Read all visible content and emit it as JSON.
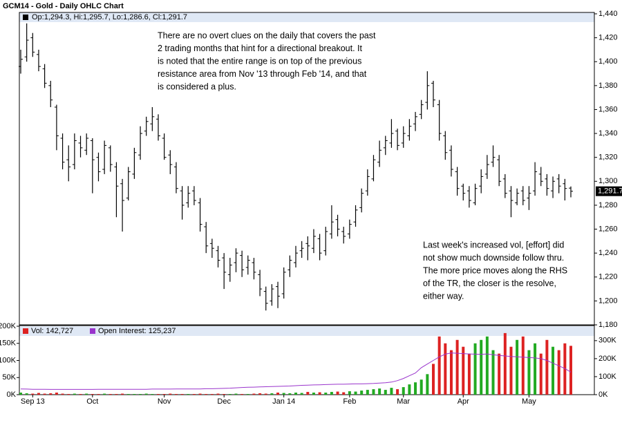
{
  "chart_data": [
    {
      "type": "ohlc",
      "title": "GCM14 - Gold - Daily OHLC Chart",
      "legend_text": "Op:1,294.3, Hi:1,295.7, Lo:1,286.6, Cl:1,291.7",
      "color": "#000000",
      "annotations": [
        {
          "lines": [
            "There are no overt clues on the daily that covers the past",
            "2 trading months that hint for a directional breakout.  It",
            "is noted that the entire range is on top of the previous",
            "resistance area from Nov '13 through Feb '14, and that",
            "is considered a plus."
          ]
        },
        {
          "lines": [
            "Last week's increased vol, [effort] did",
            "not show much downside follow thru.",
            "The more price moves along the RHS",
            "of the TR, the closer is the resolve,",
            "either way."
          ]
        }
      ],
      "last_label": "1,291.7",
      "open": [
        1396,
        1404,
        1420,
        1406,
        1394,
        1380,
        1362,
        1336,
        1318,
        1314,
        1332,
        1326,
        1334,
        1320,
        1310,
        1328,
        1312,
        1298,
        1286,
        1306,
        1322,
        1342,
        1348,
        1352,
        1336,
        1322,
        1312,
        1292,
        1282,
        1292,
        1282,
        1262,
        1248,
        1242,
        1236,
        1222,
        1232,
        1238,
        1228,
        1232,
        1222,
        1208,
        1200,
        1212,
        1206,
        1226,
        1232,
        1242,
        1248,
        1244,
        1252,
        1242,
        1256,
        1268,
        1258,
        1256,
        1266,
        1278,
        1292,
        1302,
        1316,
        1328,
        1332,
        1342,
        1332,
        1338,
        1348,
        1356,
        1366,
        1382,
        1364,
        1338,
        1326,
        1308,
        1296,
        1292,
        1282,
        1296,
        1306,
        1316,
        1318,
        1302,
        1292,
        1282,
        1292,
        1286,
        1292,
        1306,
        1302,
        1292,
        1302,
        1298,
        1294.3
      ],
      "high": [
        1410,
        1432,
        1424,
        1410,
        1398,
        1384,
        1364,
        1340,
        1330,
        1340,
        1338,
        1340,
        1336,
        1324,
        1334,
        1330,
        1316,
        1302,
        1312,
        1328,
        1346,
        1354,
        1362,
        1356,
        1340,
        1326,
        1316,
        1296,
        1296,
        1296,
        1286,
        1266,
        1252,
        1246,
        1240,
        1236,
        1244,
        1242,
        1238,
        1236,
        1226,
        1212,
        1214,
        1216,
        1228,
        1238,
        1246,
        1250,
        1254,
        1260,
        1256,
        1262,
        1280,
        1272,
        1262,
        1268,
        1280,
        1294,
        1310,
        1322,
        1334,
        1338,
        1352,
        1344,
        1346,
        1352,
        1358,
        1368,
        1392,
        1384,
        1368,
        1342,
        1330,
        1312,
        1298,
        1296,
        1298,
        1310,
        1322,
        1330,
        1322,
        1306,
        1296,
        1294,
        1296,
        1296,
        1316,
        1312,
        1306,
        1304,
        1306,
        1302,
        1295.7
      ],
      "low": [
        1390,
        1400,
        1404,
        1392,
        1378,
        1362,
        1326,
        1310,
        1300,
        1310,
        1320,
        1322,
        1290,
        1300,
        1306,
        1308,
        1270,
        1258,
        1284,
        1302,
        1318,
        1338,
        1342,
        1334,
        1318,
        1306,
        1290,
        1268,
        1278,
        1280,
        1258,
        1240,
        1236,
        1228,
        1210,
        1216,
        1224,
        1220,
        1222,
        1218,
        1204,
        1192,
        1196,
        1194,
        1202,
        1220,
        1228,
        1236,
        1234,
        1240,
        1234,
        1238,
        1252,
        1254,
        1248,
        1252,
        1262,
        1274,
        1288,
        1300,
        1312,
        1322,
        1328,
        1326,
        1328,
        1334,
        1342,
        1352,
        1360,
        1362,
        1334,
        1318,
        1304,
        1288,
        1284,
        1278,
        1280,
        1290,
        1302,
        1312,
        1296,
        1286,
        1270,
        1280,
        1280,
        1276,
        1288,
        1296,
        1288,
        1286,
        1290,
        1284,
        1286.6
      ],
      "close": [
        1402,
        1418,
        1408,
        1396,
        1382,
        1368,
        1338,
        1316,
        1312,
        1334,
        1328,
        1336,
        1318,
        1308,
        1330,
        1314,
        1296,
        1284,
        1308,
        1324,
        1340,
        1350,
        1354,
        1338,
        1320,
        1314,
        1294,
        1280,
        1290,
        1284,
        1264,
        1246,
        1244,
        1234,
        1224,
        1230,
        1240,
        1226,
        1234,
        1224,
        1210,
        1198,
        1210,
        1204,
        1224,
        1234,
        1240,
        1244,
        1246,
        1254,
        1240,
        1258,
        1266,
        1260,
        1254,
        1264,
        1276,
        1290,
        1304,
        1318,
        1326,
        1334,
        1340,
        1330,
        1340,
        1346,
        1354,
        1364,
        1380,
        1368,
        1340,
        1324,
        1310,
        1294,
        1290,
        1284,
        1294,
        1304,
        1314,
        1320,
        1300,
        1290,
        1284,
        1290,
        1284,
        1290,
        1308,
        1300,
        1294,
        1300,
        1296,
        1294,
        1291.7
      ],
      "ylim": [
        1180,
        1440
      ],
      "yticks": [
        {
          "value": 1180,
          "label": "1,180"
        },
        {
          "value": 1200,
          "label": "1,200"
        },
        {
          "value": 1220,
          "label": "1,220"
        },
        {
          "value": 1240,
          "label": "1,240"
        },
        {
          "value": 1260,
          "label": "1,260"
        },
        {
          "value": 1280,
          "label": "1,280"
        },
        {
          "value": 1300,
          "label": "1,300"
        },
        {
          "value": 1320,
          "label": "1,320"
        },
        {
          "value": 1340,
          "label": "1,340"
        },
        {
          "value": 1360,
          "label": "1,360"
        },
        {
          "value": 1380,
          "label": "1,380"
        },
        {
          "value": 1400,
          "label": "1,400"
        },
        {
          "value": 1420,
          "label": "1,420"
        },
        {
          "value": 1440,
          "label": "1,440"
        }
      ]
    },
    {
      "type": "bar",
      "categories": [
        null,
        null,
        "Sep 13",
        null,
        null,
        null,
        null,
        null,
        null,
        null,
        null,
        null,
        "Oct",
        null,
        null,
        null,
        null,
        null,
        null,
        null,
        null,
        null,
        null,
        null,
        "Nov",
        null,
        null,
        null,
        null,
        null,
        null,
        null,
        null,
        null,
        "Dec",
        null,
        null,
        null,
        null,
        null,
        null,
        null,
        null,
        null,
        "Jan 14",
        null,
        null,
        null,
        null,
        null,
        null,
        null,
        null,
        null,
        null,
        "Feb",
        null,
        null,
        null,
        null,
        null,
        null,
        null,
        null,
        "Mar",
        null,
        null,
        null,
        null,
        null,
        null,
        null,
        null,
        null,
        "Apr",
        null,
        null,
        null,
        null,
        null,
        null,
        null,
        null,
        null,
        null,
        "May",
        null,
        null,
        null,
        null,
        null,
        null,
        null
      ],
      "up_color": "#22aa22",
      "down_color": "#dd2222",
      "series": [
        {
          "name": "Vol: 142,727",
          "color": "#dd2222",
          "values": [
            6000,
            4000,
            3000,
            5000,
            3000,
            4000,
            6000,
            3000,
            2000,
            3000,
            2000,
            3000,
            2000,
            2000,
            3000,
            2000,
            2000,
            3000,
            2000,
            2000,
            2000,
            3000,
            2000,
            2000,
            2000,
            3000,
            2000,
            2000,
            2000,
            2000,
            3000,
            2000,
            2000,
            3000,
            2000,
            2000,
            3000,
            2000,
            2000,
            3000,
            4000,
            3000,
            4000,
            6000,
            5000,
            4000,
            6000,
            5000,
            8000,
            6000,
            7000,
            6000,
            8000,
            9000,
            7000,
            10000,
            9000,
            12000,
            14000,
            16000,
            18000,
            14000,
            20000,
            16000,
            22000,
            30000,
            36000,
            44000,
            60000,
            90000,
            170000,
            150000,
            130000,
            160000,
            140000,
            120000,
            150000,
            160000,
            170000,
            130000,
            120000,
            180000,
            140000,
            160000,
            170000,
            130000,
            150000,
            120000,
            160000,
            140000,
            130000,
            150000,
            142727
          ]
        },
        {
          "name": "Open Interest: 125,237",
          "color": "#9933cc",
          "axis": "y2",
          "values": [
            32000,
            31000,
            30000,
            30000,
            30000,
            29000,
            29000,
            29000,
            29000,
            29000,
            29000,
            29000,
            29000,
            30000,
            30000,
            30000,
            30000,
            30000,
            30000,
            30000,
            30000,
            30000,
            31000,
            31000,
            31000,
            31000,
            32000,
            32000,
            32000,
            32000,
            32000,
            33000,
            33000,
            34000,
            35000,
            36000,
            38000,
            40000,
            41000,
            42000,
            43000,
            44000,
            45000,
            46000,
            47000,
            48000,
            50000,
            52000,
            53000,
            54000,
            55000,
            56000,
            57000,
            58000,
            58000,
            59000,
            60000,
            60000,
            61000,
            62000,
            64000,
            66000,
            70000,
            78000,
            90000,
            105000,
            120000,
            150000,
            170000,
            190000,
            210000,
            225000,
            232000,
            230000,
            228000,
            226000,
            225000,
            224000,
            226000,
            222000,
            218000,
            215000,
            212000,
            210000,
            208000,
            206000,
            204000,
            200000,
            190000,
            175000,
            160000,
            145000,
            125237
          ]
        }
      ],
      "ylim": [
        0,
        200000
      ],
      "yticks": [
        {
          "value": 0,
          "label": "0K"
        },
        {
          "value": 50000,
          "label": "50K"
        },
        {
          "value": 100000,
          "label": "100K"
        },
        {
          "value": 150000,
          "label": "150K"
        },
        {
          "value": 200000,
          "label": "200K"
        }
      ],
      "y2lim": [
        0,
        380000
      ],
      "y2ticks": [
        {
          "value": 0,
          "label": "0K"
        },
        {
          "value": 100000,
          "label": "100K"
        },
        {
          "value": 200000,
          "label": "200K"
        },
        {
          "value": 300000,
          "label": "300K"
        }
      ]
    }
  ]
}
